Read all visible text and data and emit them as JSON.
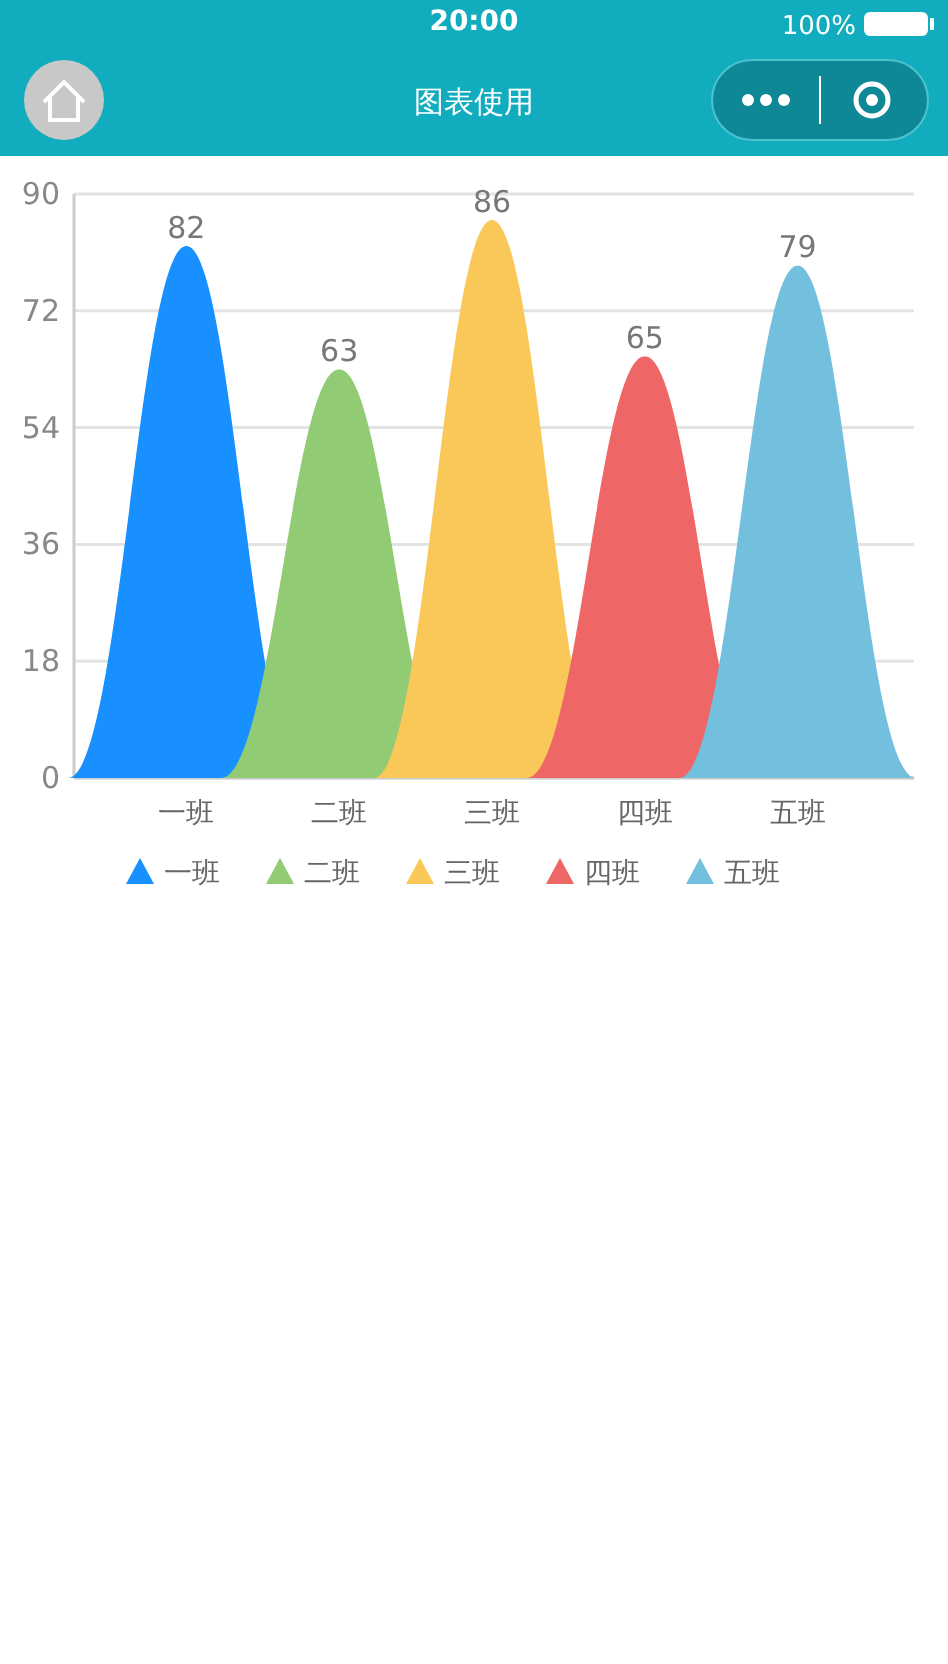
{
  "chart_data": {
    "type": "bar",
    "title": "图表使用",
    "annotations": [
      "20:00",
      "100%"
    ],
    "categories": [
      "一班",
      "二班",
      "三班",
      "四班",
      "五班"
    ],
    "series": [
      {
        "name": "一班",
        "color": "#1890ff",
        "values": [
          82,
          null,
          null,
          null,
          null
        ]
      },
      {
        "name": "二班",
        "color": "#91cb74",
        "values": [
          null,
          63,
          null,
          null,
          null
        ]
      },
      {
        "name": "三班",
        "color": "#fac858",
        "values": [
          null,
          null,
          86,
          null,
          null
        ]
      },
      {
        "name": "四班",
        "color": "#ee6666",
        "values": [
          null,
          null,
          null,
          65,
          null
        ]
      },
      {
        "name": "五班",
        "color": "#73c0de",
        "values": [
          null,
          null,
          null,
          null,
          79
        ]
      }
    ],
    "ylim": [
      0,
      90
    ],
    "yticks": [
      0,
      18,
      36,
      54,
      72,
      90
    ],
    "grid": "y",
    "legend": "bottom",
    "data_labels": true
  }
}
